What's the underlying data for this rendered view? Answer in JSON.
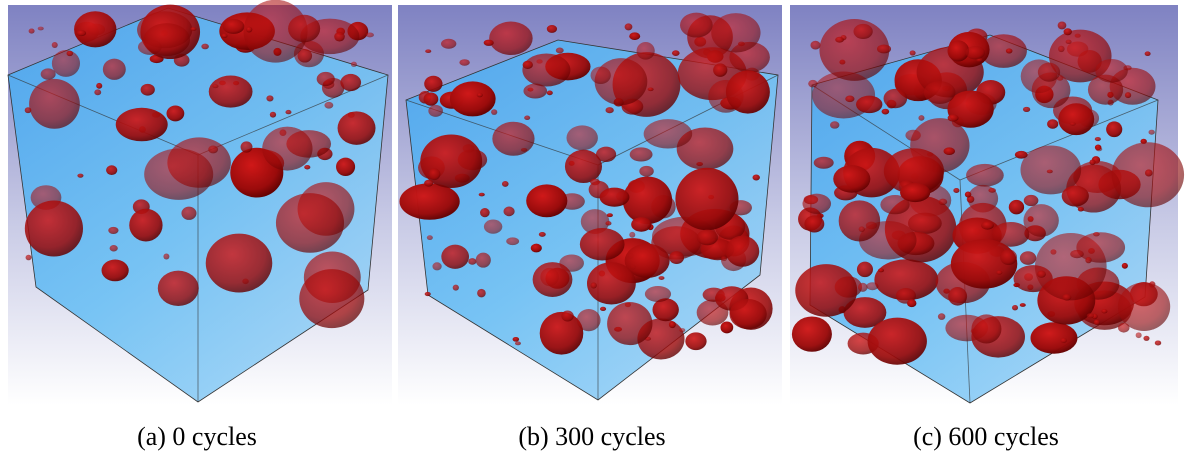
{
  "panels": [
    {
      "caption": "(a) 0 cycles"
    },
    {
      "caption": "(b) 300 cycles"
    },
    {
      "caption": "(c) 600 cycles"
    }
  ]
}
